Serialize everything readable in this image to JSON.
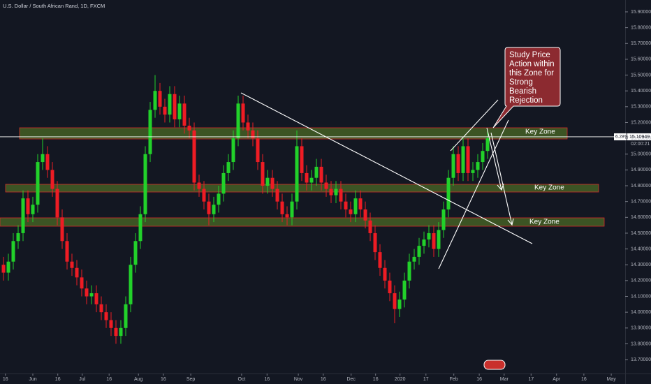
{
  "chart_data": {
    "type": "candlestick",
    "title": "U.S. Dollar / South African Rand, 1D, FXCM",
    "up_color": "#22d12a",
    "down_color": "#ee1c24",
    "open": [
      14.3,
      14.25,
      14.32,
      14.45,
      14.5,
      14.72,
      14.62,
      14.68,
      14.95,
      15.0,
      14.9,
      14.78,
      14.6,
      14.45,
      14.32,
      14.28,
      14.22,
      14.15,
      14.1,
      14.12,
      14.05,
      14.0,
      13.95,
      13.9,
      13.85,
      13.9,
      14.05,
      14.3,
      14.45,
      14.62,
      15.0,
      15.28,
      15.4,
      15.3,
      15.25,
      15.38,
      15.22,
      15.32,
      15.18,
      15.15,
      14.82,
      14.78,
      14.7,
      14.62,
      14.68,
      14.75,
      14.88,
      14.95,
      15.1,
      15.32,
      15.2,
      15.15,
      15.1,
      14.95,
      14.8,
      14.85,
      14.78,
      14.7,
      14.62,
      14.6,
      14.7,
      15.05,
      14.88,
      14.82,
      14.85,
      14.92,
      14.82,
      14.78,
      14.74,
      14.78,
      14.7,
      14.65,
      14.62,
      14.72,
      14.65,
      14.58,
      14.5,
      14.38,
      14.28,
      14.2,
      14.12,
      14.02,
      14.08,
      14.2,
      14.32,
      14.35,
      14.42,
      14.46,
      14.5,
      14.4,
      14.52,
      14.65,
      14.85,
      15.0,
      14.88,
      15.05,
      14.88,
      14.9,
      14.95,
      15.02
    ],
    "high": [
      14.35,
      14.37,
      14.5,
      14.55,
      14.77,
      14.77,
      14.73,
      15.0,
      15.1,
      15.05,
      14.95,
      14.83,
      14.65,
      14.5,
      14.37,
      14.33,
      14.27,
      14.2,
      14.17,
      14.17,
      14.1,
      14.05,
      14.0,
      13.95,
      13.95,
      14.1,
      14.35,
      14.5,
      14.67,
      15.05,
      15.33,
      15.5,
      15.45,
      15.35,
      15.43,
      15.43,
      15.37,
      15.37,
      15.23,
      15.2,
      14.87,
      14.83,
      14.75,
      14.73,
      14.8,
      14.93,
      15.0,
      15.15,
      15.37,
      15.37,
      15.25,
      15.2,
      15.15,
      15.0,
      14.9,
      14.9,
      14.83,
      14.75,
      14.67,
      14.75,
      15.15,
      15.1,
      14.93,
      14.9,
      14.97,
      14.97,
      14.87,
      14.83,
      14.83,
      14.83,
      14.75,
      14.7,
      14.77,
      14.77,
      14.7,
      14.63,
      14.55,
      14.43,
      14.33,
      14.25,
      14.17,
      14.13,
      14.25,
      14.37,
      14.4,
      14.47,
      14.51,
      14.55,
      14.55,
      14.57,
      14.7,
      14.9,
      15.05,
      15.05,
      15.1,
      15.1,
      14.95,
      15.0,
      15.07,
      15.15
    ],
    "low": [
      14.2,
      14.2,
      14.27,
      14.4,
      14.45,
      14.57,
      14.57,
      14.63,
      14.9,
      14.85,
      14.73,
      14.55,
      14.4,
      14.27,
      14.23,
      14.17,
      14.1,
      14.05,
      14.05,
      14.0,
      13.95,
      13.9,
      13.85,
      13.8,
      13.8,
      13.85,
      14.0,
      14.25,
      14.4,
      14.57,
      14.95,
      15.23,
      15.25,
      15.2,
      15.2,
      15.17,
      15.17,
      15.13,
      15.1,
      14.77,
      14.73,
      14.65,
      14.55,
      14.57,
      14.63,
      14.7,
      14.83,
      14.9,
      15.05,
      15.15,
      15.1,
      15.05,
      14.9,
      14.75,
      14.75,
      14.73,
      14.65,
      14.57,
      14.55,
      14.55,
      14.65,
      14.83,
      14.77,
      14.77,
      14.8,
      14.77,
      14.73,
      14.69,
      14.69,
      14.65,
      14.6,
      14.57,
      14.57,
      14.6,
      14.53,
      14.45,
      14.33,
      14.23,
      14.15,
      14.07,
      13.93,
      13.97,
      14.03,
      14.15,
      14.27,
      14.3,
      14.37,
      14.41,
      14.35,
      14.35,
      14.47,
      14.6,
      14.8,
      14.83,
      14.83,
      14.83,
      14.83,
      14.85,
      14.9,
      14.97
    ],
    "close": [
      14.25,
      14.32,
      14.45,
      14.5,
      14.72,
      14.62,
      14.68,
      14.95,
      15.0,
      14.9,
      14.78,
      14.6,
      14.45,
      14.32,
      14.28,
      14.22,
      14.15,
      14.1,
      14.12,
      14.05,
      14.0,
      13.95,
      13.9,
      13.85,
      13.9,
      14.05,
      14.3,
      14.45,
      14.62,
      15.0,
      15.28,
      15.4,
      15.3,
      15.25,
      15.38,
      15.22,
      15.32,
      15.18,
      15.15,
      14.82,
      14.78,
      14.7,
      14.62,
      14.68,
      14.75,
      14.88,
      14.95,
      15.1,
      15.32,
      15.2,
      15.15,
      15.1,
      14.95,
      14.8,
      14.85,
      14.78,
      14.7,
      14.62,
      14.6,
      14.7,
      15.05,
      14.88,
      14.82,
      14.85,
      14.92,
      14.82,
      14.78,
      14.74,
      14.78,
      14.7,
      14.65,
      14.62,
      14.72,
      14.65,
      14.58,
      14.5,
      14.38,
      14.28,
      14.2,
      14.12,
      14.02,
      14.08,
      14.2,
      14.32,
      14.35,
      14.42,
      14.46,
      14.5,
      14.4,
      14.52,
      14.65,
      14.85,
      15.0,
      14.88,
      15.05,
      14.88,
      14.9,
      14.95,
      15.02,
      15.1
    ],
    "xlim": [
      -0.714,
      127.143
    ],
    "xticks": [
      {
        "value": 0.4,
        "label": "16"
      },
      {
        "value": 6,
        "label": "Jun"
      },
      {
        "value": 11.1,
        "label": "16"
      },
      {
        "value": 16.1,
        "label": "Jul"
      },
      {
        "value": 21.6,
        "label": "16"
      },
      {
        "value": 27.6,
        "label": "Aug"
      },
      {
        "value": 32.7,
        "label": "16"
      },
      {
        "value": 38.3,
        "label": "Sep"
      },
      {
        "value": 48.7,
        "label": "Oct"
      },
      {
        "value": 53.9,
        "label": "16"
      },
      {
        "value": 60.3,
        "label": "Nov"
      },
      {
        "value": 65.4,
        "label": "16"
      },
      {
        "value": 71.1,
        "label": "Dec"
      },
      {
        "value": 76.1,
        "label": "16"
      },
      {
        "value": 81.1,
        "label": "2020"
      },
      {
        "value": 86.4,
        "label": "17"
      },
      {
        "value": 92.1,
        "label": "Feb"
      },
      {
        "value": 97.3,
        "label": "16"
      },
      {
        "value": 102.4,
        "label": "Mar"
      },
      {
        "value": 107.9,
        "label": "17"
      },
      {
        "value": 113.1,
        "label": "Apr"
      },
      {
        "value": 118.7,
        "label": "16"
      },
      {
        "value": 124.3,
        "label": "May"
      }
    ],
    "ylim": [
      13.612,
      15.975
    ],
    "yticks": [
      {
        "value": 13.7,
        "label": "13.70000"
      },
      {
        "value": 13.8,
        "label": "13.80000"
      },
      {
        "value": 13.9,
        "label": "13.90000"
      },
      {
        "value": 14.0,
        "label": "14.00000"
      },
      {
        "value": 14.1,
        "label": "14.10000"
      },
      {
        "value": 14.2,
        "label": "14.20000"
      },
      {
        "value": 14.3,
        "label": "14.30000"
      },
      {
        "value": 14.4,
        "label": "14.40000"
      },
      {
        "value": 14.5,
        "label": "14.50000"
      },
      {
        "value": 14.6,
        "label": "14.60000"
      },
      {
        "value": 14.7,
        "label": "14.70000"
      },
      {
        "value": 14.8,
        "label": "14.80000"
      },
      {
        "value": 14.9,
        "label": "14.90000"
      },
      {
        "value": 15.0,
        "label": "15.00000"
      },
      {
        "value": 15.1,
        "label": "15.10000"
      },
      {
        "value": 15.2,
        "label": "15.20000"
      },
      {
        "value": 15.3,
        "label": "15.30000"
      },
      {
        "value": 15.4,
        "label": "15.40000"
      },
      {
        "value": 15.5,
        "label": "15.50000"
      },
      {
        "value": 15.6,
        "label": "15.60000"
      },
      {
        "value": 15.7,
        "label": "15.70000"
      },
      {
        "value": 15.8,
        "label": "15.80000"
      },
      {
        "value": 15.9,
        "label": "15.90000"
      }
    ],
    "grid": false,
    "last_price": 15.10949,
    "change": {
      "value": 6.28,
      "label": "6.28%"
    },
    "countdown": "02:00:21",
    "zones": [
      "Key Zone",
      "Key Zone",
      "Key Zone"
    ],
    "annotation": [
      "Study Price",
      "Action within",
      "this Zone for",
      "Strong",
      "Bearish",
      "Rejection"
    ]
  }
}
